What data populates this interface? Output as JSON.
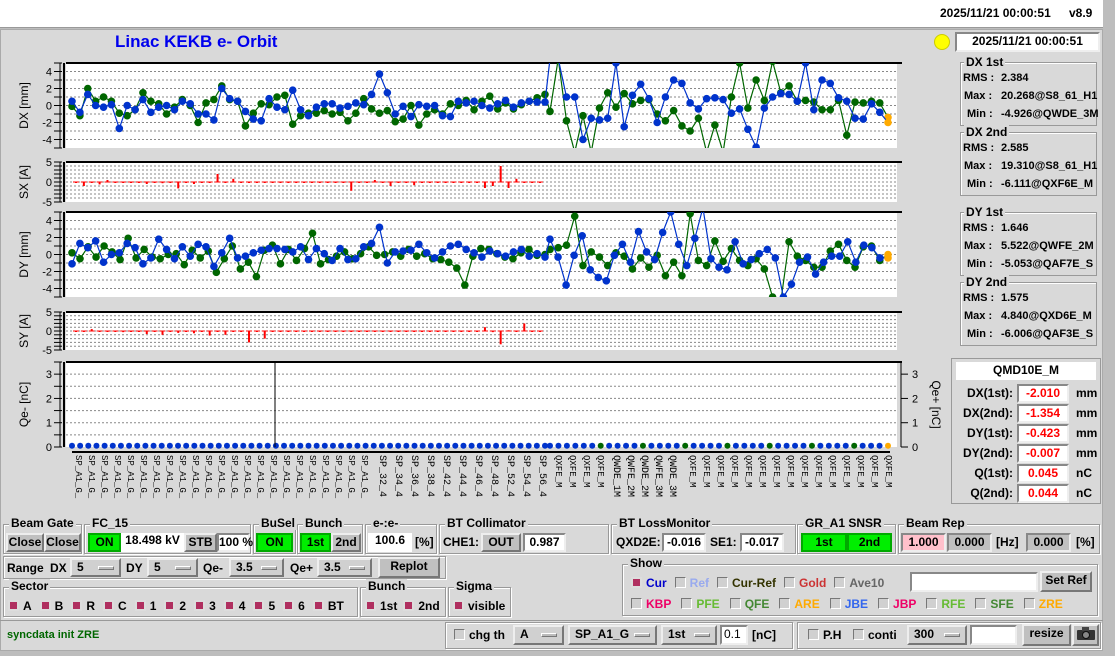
{
  "header": {
    "datetime": "2025/11/21 00:00:51",
    "version": "v8.9"
  },
  "title": "Linac KEKB e- Orbit",
  "status_indicator_color": "#ffff00",
  "clock": "2025/11/21 00:00:51",
  "colors": {
    "cur_1st": "#0033cc",
    "cur_2nd": "#006600",
    "steer": "#ff0000",
    "selected": "#ffaa00"
  },
  "stats": [
    {
      "label": "DX 1st",
      "rms": "2.384",
      "max": "20.268@S8_61_H1",
      "min": "-4.926@QWDE_3M"
    },
    {
      "label": "DX 2nd",
      "rms": "2.585",
      "max": "19.310@S8_61_H1",
      "min": "-6.111@QXF6E_M"
    },
    {
      "label": "DY 1st",
      "rms": "1.646",
      "max": "5.522@QWFE_2M",
      "min": "-5.053@QAF7E_S"
    },
    {
      "label": "DY 2nd",
      "rms": "1.575",
      "max": "4.840@QXD6E_M",
      "min": "-6.006@QAF3E_S"
    }
  ],
  "stat_keys": {
    "rms": "RMS :",
    "max": "Max :",
    "min": "Min :"
  },
  "readout": {
    "name": "QMD10E_M",
    "rows": [
      {
        "label": "DX(1st):",
        "value": "-2.010",
        "unit": "mm"
      },
      {
        "label": "DX(2nd):",
        "value": "-1.354",
        "unit": "mm"
      },
      {
        "label": "DY(1st):",
        "value": "-0.423",
        "unit": "mm"
      },
      {
        "label": "DY(2nd):",
        "value": "-0.007",
        "unit": "mm"
      },
      {
        "label": "Q(1st):",
        "value": "0.045",
        "unit": "nC"
      },
      {
        "label": "Q(2nd):",
        "value": "0.044",
        "unit": "nC"
      }
    ]
  },
  "plots": {
    "dx": {
      "ylabel": "DX [mm]",
      "ylim": [
        -5,
        5
      ],
      "ticks": [
        "4",
        "2",
        "0",
        "-2",
        "-4"
      ],
      "first": [
        0.5,
        -0.8,
        1.3,
        0,
        -0.2,
        0.1,
        -2.7,
        0,
        -0.5,
        0.7,
        -0.8,
        -0.2,
        0,
        -0.5,
        0.5,
        0.2,
        -1,
        -1,
        -1.7,
        2,
        0.8,
        0.5,
        -0.7,
        -1.6,
        -1.8,
        0.8,
        -0.2,
        -0.5,
        1.8,
        -0.5,
        -1.2,
        -0.2,
        0.2,
        0.2,
        -0.3,
        -0.1,
        0.3,
        0.1,
        1.3,
        3.7,
        1.5,
        -1,
        -0.1,
        -1.3,
        0.1,
        -0.1,
        0,
        -1.2,
        -1.3,
        0.5,
        0.3,
        0.5,
        0,
        -0.3,
        0.2,
        0.6,
        -0.2,
        0.3,
        0.5,
        0.4,
        0.4,
        20.3,
        20.1,
        1,
        1,
        -4,
        -1.5,
        -1.7,
        -1.5,
        5,
        -2.5,
        1.2,
        2.5,
        0.8,
        -2,
        1,
        3,
        2.6,
        0.3,
        -0.4,
        0.8,
        0.9,
        0.7,
        -0.9,
        -0.4,
        -2.8,
        -4.9,
        -0.3,
        1,
        1.4,
        1.3,
        0.5,
        5,
        -0.5,
        3,
        2.6,
        0.9,
        0.5,
        -1.5,
        -1.6,
        0.2,
        -0.8,
        -2.0
      ],
      "second": [
        -0.1,
        -1.2,
        2,
        0.5,
        1,
        0.5,
        -0.9,
        -1.2,
        -0.5,
        1.5,
        0.5,
        0.2,
        -1,
        -0.2,
        0.7,
        0,
        -2,
        0.3,
        0.7,
        2.3,
        0.7,
        0.5,
        -2.4,
        -0.9,
        0.2,
        0.1,
        1,
        1.2,
        -2.2,
        -1.2,
        -0.9,
        -0.9,
        -0.6,
        -1,
        -0.8,
        -1.8,
        -0.9,
        0.8,
        -0.4,
        -0.9,
        -0.6,
        -1.9,
        -1.6,
        0,
        -2.3,
        -1,
        -0.5,
        -1,
        0.2,
        0,
        0.6,
        -0.5,
        0.5,
        1.1,
        -0.4,
        0.3,
        -0.4,
        0.1,
        0.5,
        0.9,
        1.3,
        -0.7,
        19.3,
        -1.8,
        -6,
        -1.2,
        -6.1,
        -0.3,
        1.5,
        -0.2,
        1.4,
        0.2,
        0.6,
        0.7,
        -1,
        -1.8,
        -0.6,
        -2.4,
        -3,
        -1.5,
        -6,
        -2.3,
        -6,
        1,
        5,
        -0.3,
        3,
        0.6,
        5.2,
        1.5,
        2.3,
        0.5,
        0.6,
        0.4,
        -0.5,
        -0.5,
        0.6,
        -3.5,
        0.4,
        0.3,
        0.5,
        0.3,
        -1.4
      ]
    },
    "sx": {
      "ylabel": "SX [A]",
      "ylim": [
        -5,
        5
      ],
      "ticks": [
        "5",
        "0",
        "-5"
      ],
      "values": [
        0,
        -1,
        0,
        -0.6,
        0.5,
        0,
        0,
        0,
        0,
        -0.5,
        0,
        -0.3,
        0,
        -1.6,
        0,
        -0.5,
        0,
        0,
        2,
        0,
        0.8,
        0,
        0,
        0,
        0,
        0,
        0,
        0,
        0,
        0,
        0,
        0,
        0,
        0,
        0,
        -2.2,
        0,
        0,
        0.5,
        0,
        -1,
        0,
        0,
        -0.8,
        0,
        0,
        0,
        0,
        0,
        0,
        0,
        0,
        -1.5,
        -1,
        4,
        -1.5,
        0.8,
        0,
        0,
        0
      ]
    },
    "dy": {
      "ylabel": "DY [mm]",
      "ylim": [
        -5,
        5
      ],
      "ticks": [
        "4",
        "2",
        "0",
        "-2",
        "-4"
      ],
      "first": [
        -1.1,
        1.3,
        0.8,
        1.6,
        -0.9,
        0,
        0.2,
        1.3,
        0.8,
        -1.1,
        -0.4,
        1.8,
        0.6,
        -0.5,
        0.9,
        -0.2,
        1.2,
        0.9,
        -1.4,
        0.2,
        1.9,
        -0.4,
        -0.2,
        0.2,
        0.5,
        0.7,
        0.7,
        0.6,
        0.3,
        0.9,
        -0.6,
        0.7,
        0.1,
        -0.7,
        0.7,
        -0.6,
        -0.5,
        0.9,
        1.3,
        3.2,
        -1,
        0.3,
        0.4,
        0.5,
        1.2,
        0.2,
        -0.4,
        0.3,
        1,
        1.2,
        0.6,
        0.2,
        -0.3,
        0.4,
        0.1,
        -0.2,
        0.3,
        0.6,
        -0.2,
        0.1,
        -0.3,
        1.8,
        -0.3,
        -3.6,
        -0.1,
        2.2,
        -1.8,
        -2.7,
        -3.1,
        -0.1,
        1.2,
        -0.9,
        2.7,
        0.3,
        -0.6,
        2.6,
        5,
        1.2,
        -1.3,
        1.9,
        5.5,
        -0.5,
        -1.5,
        -1.8,
        1.5,
        -1.1,
        -0.6,
        0.1,
        0.6,
        -0.4,
        -5,
        -3.5,
        -0.9,
        -0.3,
        -2.3,
        -0.9,
        -0.2,
        -0.2,
        1.5,
        -0.9,
        1.1,
        0.8,
        -0.4,
        -0.4
      ],
      "second": [
        0.2,
        -0.5,
        0.9,
        -0.3,
        1,
        0.3,
        -0.6,
        1.9,
        -0.4,
        0.6,
        -0.3,
        -0.5,
        0,
        0.1,
        -1.2,
        0.5,
        -0.4,
        0.4,
        -2.1,
        -0.5,
        1,
        -1.7,
        -0.9,
        -2.6,
        0.5,
        1.1,
        -1.1,
        0.6,
        -0.7,
        0.7,
        2.5,
        -1.1,
        -0.6,
        -0.2,
        0.3,
        -0.5,
        0.1,
        0.9,
        -0.1,
        0,
        0.3,
        -0.2,
        0.6,
        -0.2,
        0.1,
        -0.5,
        -0.6,
        -0.9,
        -1.6,
        -3.6,
        -0.2,
        0.7,
        0.6,
        0.1,
        -0.3,
        -0.5,
        0.2,
        0.6,
        -0.1,
        0,
        0.6,
        0.8,
        1.1,
        4.5,
        -1.3,
        0.3,
        -0.3,
        -1.3,
        0.2,
        -0.2,
        -1.7,
        -0.4,
        -1.5,
        -0.1,
        -2.5,
        -0.9,
        -2.5,
        4.8,
        -0.7,
        -1.3,
        1.6,
        -0.8,
        0.7,
        -0.7,
        -1.3,
        -0.5,
        -1.7,
        -5,
        -6,
        1.5,
        -0.2,
        -0.7,
        -1.5,
        -1.5,
        0.4,
        1.2,
        -0.7,
        -1.5,
        0.9,
        1,
        -0.7,
        0
      ]
    },
    "sy": {
      "ylabel": "SY [A]",
      "ylim": [
        -5,
        5
      ],
      "ticks": [
        "5",
        "0",
        "-5"
      ],
      "values": [
        0,
        0,
        0.5,
        0,
        0,
        0,
        -0.3,
        0,
        0,
        -0.8,
        0,
        -1,
        0,
        -0.5,
        0,
        -0.6,
        0,
        -1.2,
        0,
        -1,
        0,
        0,
        -3,
        0,
        -2,
        0,
        0,
        0,
        0,
        0,
        0,
        0,
        0,
        0,
        0,
        0,
        0,
        0,
        0,
        0,
        0,
        0,
        0,
        0,
        0,
        0,
        0,
        0,
        0,
        0,
        0,
        0,
        1,
        -0.3,
        -3.5,
        0.2,
        0,
        2,
        0,
        0
      ]
    },
    "qe": {
      "ylabel_left": "Qe- [nC]",
      "ylabel_right": "Qe+ [nC]",
      "ylim": [
        0,
        3.5
      ],
      "ticks": [
        "3",
        "2",
        "1",
        "0"
      ],
      "marker_index": 38
    }
  },
  "xaxis_labels": [
    "SP_32_4",
    "SP_34_4",
    "SP_36_4",
    "SP_38_4",
    "SP_42_4",
    "SP_44_4",
    "SP_46_4",
    "SP_48_4",
    "SP_52_4",
    "SP_54_4",
    "SP_56_4",
    "QWDE_1M",
    "QWFE_2M",
    "QWDE_2M",
    "QWFE_3M",
    "QWDE_3M"
  ],
  "controls": {
    "beam_gate": {
      "label": "Beam Gate",
      "b1": "Close",
      "b2": "Close"
    },
    "fc15": {
      "label": "FC_15",
      "on": "ON",
      "kv": "18.498 kV",
      "stb": "STB",
      "pct": "100 %"
    },
    "busel": {
      "label": "BuSel",
      "on": "ON"
    },
    "bunch": {
      "label": "Bunch",
      "first": "1st",
      "second": "2nd"
    },
    "ee": {
      "label": "e-:e-",
      "value": "100.6",
      "unit": "[%]"
    },
    "bt_coll": {
      "label": "BT Collimator",
      "name": "CHE1:",
      "state": "OUT",
      "value": "0.987"
    },
    "bt_loss": {
      "label": "BT LossMonitor",
      "n1": "QXD2E:",
      "v1": "-0.016",
      "n2": "SE1:",
      "v2": "-0.017"
    },
    "gr": {
      "label": "GR_A1  SNSR",
      "first": "1st",
      "second": "2nd"
    },
    "beam_rep": {
      "label": "Beam Rep",
      "v1": "1.000",
      "v2": "0.000",
      "u1": "[Hz]",
      "v3": "0.000",
      "u2": "[%]"
    },
    "range": {
      "label": "Range",
      "dx": "DX",
      "dx_val": "5",
      "dy": "DY",
      "dy_val": "5",
      "qem": "Qe-",
      "qem_val": "3.5",
      "qep": "Qe+",
      "qep_val": "3.5",
      "replot": "Replot"
    },
    "sector": {
      "label": "Sector",
      "items": [
        "A",
        "B",
        "R",
        "C",
        "1",
        "2",
        "3",
        "4",
        "5",
        "6",
        "BT"
      ]
    },
    "bunch2": {
      "label": "Bunch",
      "items": [
        "1st",
        "2nd"
      ]
    },
    "sigma": {
      "label": "Sigma",
      "item": "visible"
    },
    "show": {
      "label": "Show",
      "row1": [
        {
          "t": "Cur",
          "c": "#0000cc",
          "on": true
        },
        {
          "t": "Ref",
          "c": "#99aaee",
          "on": false
        },
        {
          "t": "Cur-Ref",
          "c": "#333300",
          "on": false
        },
        {
          "t": "Gold",
          "c": "#cc3333",
          "on": false
        },
        {
          "t": "Ave10",
          "c": "#666666",
          "on": false
        }
      ],
      "row2": [
        {
          "t": "KBP",
          "c": "#ee0066"
        },
        {
          "t": "PFE",
          "c": "#66bb33"
        },
        {
          "t": "QFE",
          "c": "#448833"
        },
        {
          "t": "ARE",
          "c": "#ffaa00"
        },
        {
          "t": "JBE",
          "c": "#3366ee"
        },
        {
          "t": "JBP",
          "c": "#ee0066"
        },
        {
          "t": "RFE",
          "c": "#66bb33"
        },
        {
          "t": "SFE",
          "c": "#448833"
        },
        {
          "t": "ZRE",
          "c": "#ffaa00"
        }
      ],
      "ref_input": "",
      "set_ref": "Set Ref"
    },
    "status_msg": "syncdata init ZRE",
    "chg": {
      "label": "chg th",
      "sel1": "A",
      "sel2": "SP_A1_G",
      "sel3": "1st",
      "thr": "0.1",
      "unit": "[nC]"
    },
    "ph": {
      "label": "P.H",
      "conti": "conti",
      "count": "300",
      "input": "",
      "resize": "resize"
    }
  }
}
